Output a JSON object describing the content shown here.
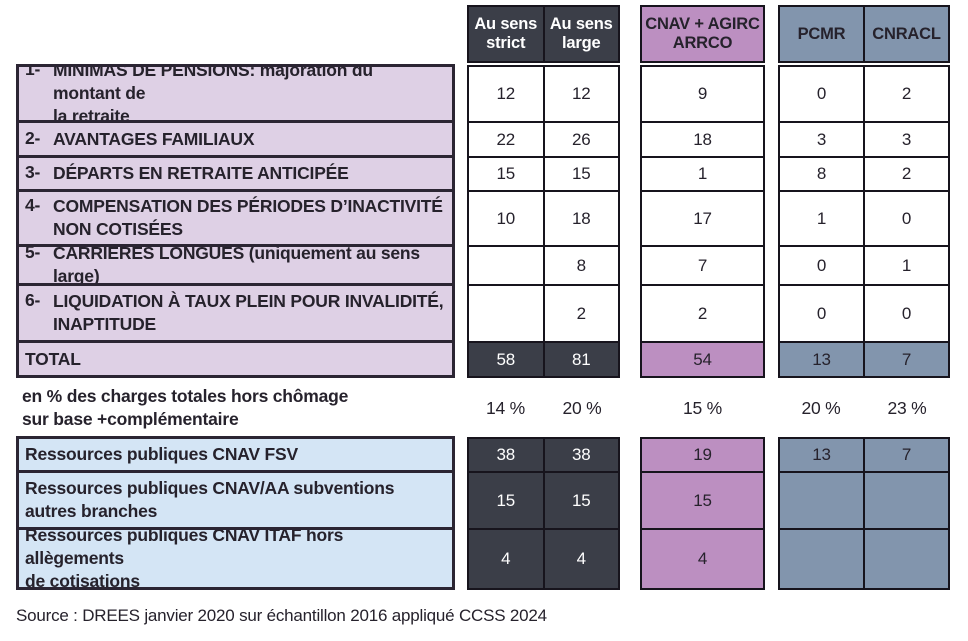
{
  "header": {
    "columns": [
      {
        "label": "Au sens\nstrict"
      },
      {
        "label": "Au sens\nlarge"
      },
      {
        "label": "CNAV + AGIRC\nARRCO"
      },
      {
        "label": "PCMR"
      },
      {
        "label": "CNRACL"
      }
    ]
  },
  "main": {
    "rows": [
      {
        "num": "1-",
        "label": "MINIMAS DE PENSIONS: majoration du montant de\nla retraite",
        "values": [
          "12",
          "12",
          "9",
          "0",
          "2"
        ]
      },
      {
        "num": "2-",
        "label": "AVANTAGES FAMILIAUX",
        "values": [
          "22",
          "26",
          "18",
          "3",
          "3"
        ]
      },
      {
        "num": "3-",
        "label": "DÉPARTS EN RETRAITE ANTICIPÉE",
        "values": [
          "15",
          "15",
          "1",
          "8",
          "2"
        ]
      },
      {
        "num": "4-",
        "label": "COMPENSATION DES PÉRIODES D’INACTIVITÉ\nNON COTISÉES",
        "values": [
          "10",
          "18",
          "17",
          "1",
          "0"
        ]
      },
      {
        "num": "5-",
        "label": "CARRIÈRES LONGUES (uniquement au sens large)",
        "values": [
          "",
          "8",
          "7",
          "0",
          "1"
        ]
      },
      {
        "num": "6-",
        "label": "LIQUIDATION À TAUX PLEIN POUR INVALIDITÉ,\nINAPTITUDE",
        "values": [
          "",
          "2",
          "2",
          "0",
          "0"
        ]
      }
    ],
    "total": {
      "label": "TOTAL",
      "values": [
        "58",
        "81",
        "54",
        "13",
        "7"
      ]
    }
  },
  "pct_row": {
    "label": "en % des charges totales hors chômage\nsur base +complémentaire",
    "values": [
      "14 %",
      "20 %",
      "15 %",
      "20 %",
      "23 %"
    ]
  },
  "resources": {
    "rows": [
      {
        "label": "Ressources publiques CNAV FSV",
        "values": [
          "38",
          "38",
          "19",
          "13",
          "7"
        ]
      },
      {
        "label": "Ressources publiques CNAV/AA subventions\nautres branches",
        "values": [
          "15",
          "15",
          "15",
          "",
          ""
        ]
      },
      {
        "label": "Ressources publiques CNAV ITAF hors allègements\nde cotisations",
        "values": [
          "4",
          "4",
          "4",
          "",
          ""
        ]
      }
    ]
  },
  "source": "Source : DREES janvier 2020 sur échantillon 2016 appliqué CCSS 2024",
  "colors": {
    "dark": "#3b3e48",
    "purple": "#bc8fc1",
    "bluegray": "#8295ad",
    "pink": "#ded0e5",
    "lightblue": "#d4e5f5"
  }
}
